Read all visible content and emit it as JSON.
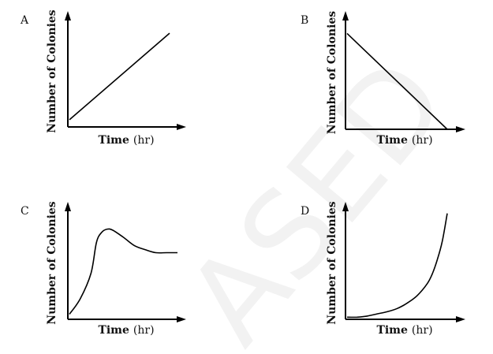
{
  "watermark_text": "ASED",
  "chart_data": [
    {
      "panel_label": "A",
      "type": "line",
      "xlabel_bold": "Time",
      "xlabel_unit": "(hr)",
      "ylabel": "Number of Colonies",
      "shape": "linear increase",
      "series": [
        {
          "x": [
            0,
            1
          ],
          "y": [
            0.05,
            0.95
          ]
        }
      ]
    },
    {
      "panel_label": "B",
      "type": "line",
      "xlabel_bold": "Time",
      "xlabel_unit": "(hr)",
      "ylabel": "Number of Colonies",
      "shape": "linear decrease",
      "series": [
        {
          "x": [
            0,
            1
          ],
          "y": [
            0.95,
            0.0
          ]
        }
      ]
    },
    {
      "panel_label": "C",
      "type": "line",
      "xlabel_bold": "Time",
      "xlabel_unit": "(hr)",
      "ylabel": "Number of Colonies",
      "shape": "rise, peak, then plateau",
      "series": [
        {
          "x": [
            0,
            0.1,
            0.2,
            0.25,
            0.3,
            0.35,
            0.4,
            0.5,
            0.6,
            0.7,
            0.8,
            0.9,
            1.0
          ],
          "y": [
            0.05,
            0.2,
            0.45,
            0.75,
            0.85,
            0.88,
            0.87,
            0.8,
            0.72,
            0.68,
            0.65,
            0.65,
            0.65
          ]
        }
      ]
    },
    {
      "panel_label": "D",
      "type": "line",
      "xlabel_bold": "Time",
      "xlabel_unit": "(hr)",
      "ylabel": "Number of Colonies",
      "shape": "exponential increase",
      "series": [
        {
          "x": [
            0,
            0.1,
            0.2,
            0.3,
            0.4,
            0.5,
            0.6,
            0.7,
            0.8,
            0.85,
            0.9,
            0.95,
            1.0
          ],
          "y": [
            0.02,
            0.02,
            0.03,
            0.05,
            0.07,
            0.1,
            0.15,
            0.22,
            0.33,
            0.42,
            0.55,
            0.72,
            0.98
          ]
        }
      ]
    }
  ]
}
